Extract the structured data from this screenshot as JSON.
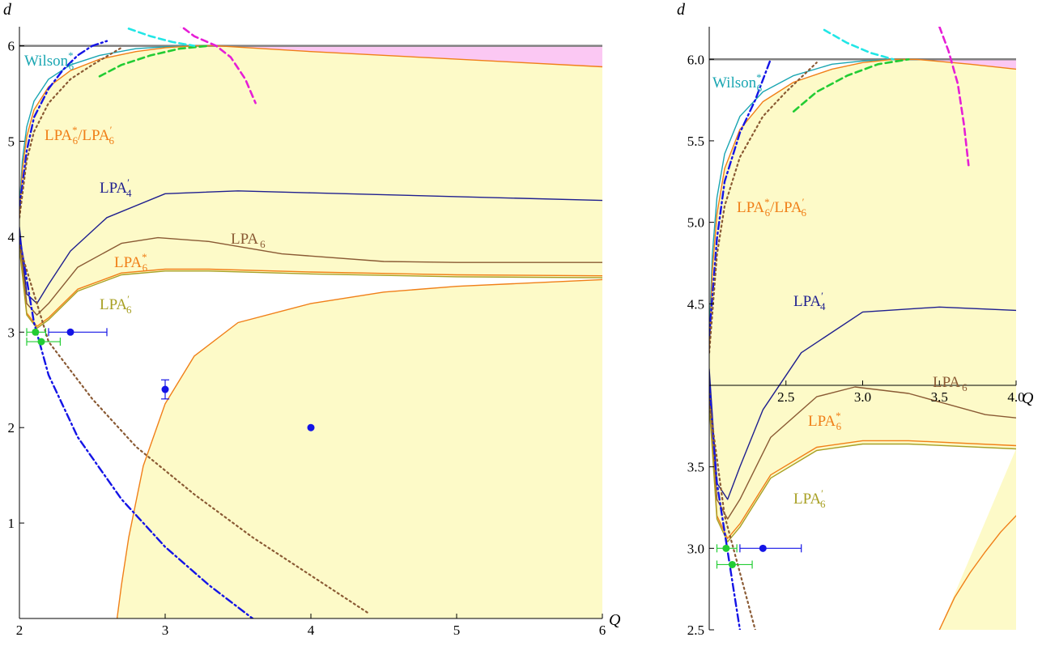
{
  "colors": {
    "region_fill": "#fdfac8",
    "magenta_fill": "#fbc8f3",
    "grey_line": "#808080",
    "orange": "#f07f18",
    "navy": "#1f1f8f",
    "brown": "#8a5a34",
    "olive": "#a8a024",
    "cyan": "#1aa6b2",
    "blue": "#1414e6",
    "green": "#22cc33",
    "magenta": "#e61ed6",
    "cyan_dash": "#22e6e6"
  },
  "chart_data": [
    {
      "type": "line",
      "panel": "left",
      "xlabel": "Q",
      "ylabel": "d",
      "xlim": [
        2,
        6
      ],
      "ylim": [
        0,
        6.2
      ],
      "x_ticks": [
        "2",
        "3",
        "4",
        "5",
        "6"
      ],
      "y_ticks": [
        "1",
        "2",
        "3",
        "4",
        "5",
        "6"
      ],
      "x_tick_values": [
        2,
        3,
        4,
        5,
        6
      ],
      "y_tick_values": [
        1,
        2,
        3,
        4,
        5,
        6
      ],
      "labels": {
        "wilson": {
          "base": "Wilson",
          "sup": "*",
          "sub": "6"
        },
        "lpa_star_prime": {
          "base": "LPA",
          "sup": "*",
          "mid": "/LPA",
          "sup2": "′",
          "sub": "6"
        },
        "lpa4_prime": {
          "base": "LPA",
          "sup": "′",
          "sub": "4"
        },
        "lpa6": {
          "base": "LPA",
          "sub": "6"
        },
        "lpa6_star": {
          "base": "LPA",
          "sup": "*",
          "sub": "6"
        },
        "lpa6_prime": {
          "base": "LPA",
          "sup": "′",
          "sub": "6"
        }
      },
      "series": [
        {
          "name": "Wilson*6",
          "style": "solid",
          "x": [
            2.0,
            2.02,
            2.05,
            2.1,
            2.2,
            2.35,
            2.55,
            2.8,
            3.0,
            3.2,
            3.35
          ],
          "y": [
            4.3,
            4.8,
            5.15,
            5.42,
            5.65,
            5.8,
            5.9,
            5.97,
            5.99,
            6.0,
            6.0
          ]
        },
        {
          "name": "LPA*6/LPA'6",
          "style": "solid",
          "x": [
            2.0,
            2.02,
            2.05,
            2.1,
            2.2,
            2.35,
            2.55,
            2.8,
            3.0,
            3.2,
            3.35,
            4.0,
            5.0,
            6.0
          ],
          "y": [
            4.2,
            4.7,
            5.05,
            5.33,
            5.57,
            5.74,
            5.86,
            5.94,
            5.98,
            6.0,
            6.0,
            5.94,
            5.86,
            5.78
          ]
        },
        {
          "name": "LPA'4",
          "style": "solid",
          "x": [
            2.0,
            2.05,
            2.12,
            2.2,
            2.35,
            2.6,
            3.0,
            3.5,
            4.0,
            5.0,
            6.0
          ],
          "y": [
            4.1,
            3.4,
            3.3,
            3.5,
            3.85,
            4.2,
            4.45,
            4.48,
            4.46,
            4.42,
            4.38
          ]
        },
        {
          "name": "LPA6",
          "style": "solid",
          "x": [
            2.0,
            2.05,
            2.12,
            2.2,
            2.4,
            2.7,
            2.95,
            3.3,
            3.8,
            4.5,
            5.0,
            6.0
          ],
          "y": [
            4.0,
            3.3,
            3.18,
            3.3,
            3.68,
            3.93,
            3.99,
            3.95,
            3.82,
            3.74,
            3.73,
            3.73
          ]
        },
        {
          "name": "LPA*6",
          "style": "solid",
          "x": [
            2.0,
            2.05,
            2.12,
            2.2,
            2.4,
            2.7,
            3.0,
            3.3,
            4.0,
            5.0,
            6.0
          ],
          "y": [
            3.9,
            3.2,
            3.06,
            3.15,
            3.45,
            3.62,
            3.66,
            3.66,
            3.63,
            3.6,
            3.59
          ]
        },
        {
          "name": "LPA'6",
          "style": "solid",
          "x": [
            2.0,
            2.05,
            2.12,
            2.2,
            2.4,
            2.7,
            3.0,
            3.3,
            4.0,
            5.0,
            6.0
          ],
          "y": [
            3.88,
            3.18,
            3.04,
            3.13,
            3.43,
            3.6,
            3.64,
            3.64,
            3.61,
            3.58,
            3.57
          ]
        },
        {
          "name": "lower-orange",
          "style": "solid",
          "x": [
            2.67,
            2.7,
            2.75,
            2.85,
            3.0,
            3.2,
            3.5,
            4.0,
            4.5,
            5.0,
            6.0
          ],
          "y": [
            0.0,
            0.35,
            0.85,
            1.6,
            2.25,
            2.75,
            3.1,
            3.3,
            3.42,
            3.48,
            3.55
          ]
        },
        {
          "name": "blue-dashdot",
          "style": "dashdot",
          "x": [
            2.0,
            2.05,
            2.1,
            2.2,
            2.3,
            2.4,
            2.5,
            2.6
          ],
          "y": [
            4.3,
            4.9,
            5.25,
            5.55,
            5.75,
            5.9,
            6.0,
            6.05
          ]
        },
        {
          "name": "blue-dashdot-lower",
          "style": "dashdot",
          "x": [
            2.0,
            2.1,
            2.2,
            2.4,
            2.7,
            3.0,
            3.3,
            3.6
          ],
          "y": [
            4.0,
            3.1,
            2.55,
            1.9,
            1.25,
            0.75,
            0.35,
            0.0
          ]
        },
        {
          "name": "brown-dotted",
          "style": "dotted",
          "x": [
            2.0,
            2.05,
            2.1,
            2.2,
            2.35,
            2.5,
            2.7
          ],
          "y": [
            4.2,
            4.8,
            5.1,
            5.4,
            5.65,
            5.8,
            5.98
          ]
        },
        {
          "name": "brown-dotted-lower",
          "style": "dotted",
          "x": [
            2.0,
            2.2,
            2.5,
            2.8,
            3.2,
            3.6,
            4.0,
            4.4
          ],
          "y": [
            3.9,
            2.9,
            2.3,
            1.8,
            1.3,
            0.85,
            0.45,
            0.05
          ]
        },
        {
          "name": "green-dashed",
          "style": "dashed",
          "x": [
            2.55,
            2.7,
            2.9,
            3.1,
            3.3
          ],
          "y": [
            5.68,
            5.8,
            5.9,
            5.97,
            6.0
          ]
        },
        {
          "name": "cyan-dashed",
          "style": "dashed",
          "x": [
            2.75,
            2.9,
            3.05,
            3.2
          ],
          "y": [
            6.18,
            6.1,
            6.04,
            6.0
          ]
        },
        {
          "name": "magenta-dashed",
          "style": "dashed",
          "x": [
            3.07,
            3.2,
            3.35,
            3.45,
            3.55,
            3.62
          ],
          "y": [
            6.25,
            6.1,
            6.0,
            5.88,
            5.65,
            5.4
          ]
        }
      ],
      "points": [
        {
          "x": 2.35,
          "y": 3.0,
          "xerr": [
            2.2,
            2.6
          ],
          "color": "blue"
        },
        {
          "x": 3.0,
          "y": 2.4,
          "yerr": [
            2.3,
            2.5
          ],
          "color": "blue"
        },
        {
          "x": 4.0,
          "y": 2.0,
          "color": "blue"
        },
        {
          "x": 2.11,
          "y": 3.0,
          "xerr": [
            2.05,
            2.18
          ],
          "color": "green"
        },
        {
          "x": 2.15,
          "y": 2.9,
          "xerr": [
            2.05,
            2.28
          ],
          "color": "green"
        }
      ]
    },
    {
      "type": "line",
      "panel": "right",
      "xlabel": "Q",
      "ylabel": "d",
      "xlim": [
        2,
        4
      ],
      "ylim": [
        2.5,
        6.2
      ],
      "x_axis_at": 4.0,
      "x_ticks": [
        "2.5",
        "3.0",
        "3.5",
        "4.0"
      ],
      "y_ticks": [
        "2.5",
        "3.0",
        "3.5",
        "4.5",
        "5.0",
        "5.5",
        "6.0"
      ],
      "x_tick_values": [
        2.5,
        3.0,
        3.5,
        4.0
      ],
      "y_tick_values": [
        2.5,
        3.0,
        3.5,
        4.5,
        5.0,
        5.5,
        6.0
      ],
      "series": [
        {
          "name": "Wilson*6",
          "style": "solid",
          "x": [
            2.0,
            2.02,
            2.05,
            2.1,
            2.2,
            2.35,
            2.55,
            2.8,
            3.0,
            3.2,
            3.35
          ],
          "y": [
            4.3,
            4.8,
            5.15,
            5.42,
            5.65,
            5.8,
            5.9,
            5.97,
            5.99,
            6.0,
            6.0
          ]
        },
        {
          "name": "LPA*6/LPA'6",
          "style": "solid",
          "x": [
            2.0,
            2.02,
            2.05,
            2.1,
            2.2,
            2.35,
            2.55,
            2.8,
            3.0,
            3.2,
            3.35,
            3.7,
            4.0
          ],
          "y": [
            4.2,
            4.7,
            5.05,
            5.33,
            5.57,
            5.74,
            5.86,
            5.94,
            5.98,
            6.0,
            6.0,
            5.97,
            5.94
          ]
        },
        {
          "name": "LPA'4",
          "style": "solid",
          "x": [
            2.0,
            2.05,
            2.12,
            2.2,
            2.35,
            2.6,
            3.0,
            3.5,
            4.0
          ],
          "y": [
            4.1,
            3.4,
            3.3,
            3.5,
            3.85,
            4.2,
            4.45,
            4.48,
            4.46
          ]
        },
        {
          "name": "LPA6",
          "style": "solid",
          "x": [
            2.0,
            2.05,
            2.12,
            2.2,
            2.4,
            2.7,
            2.95,
            3.3,
            3.8,
            4.0
          ],
          "y": [
            4.0,
            3.3,
            3.18,
            3.3,
            3.68,
            3.93,
            3.99,
            3.95,
            3.82,
            3.8
          ]
        },
        {
          "name": "LPA*6",
          "style": "solid",
          "x": [
            2.0,
            2.05,
            2.12,
            2.2,
            2.4,
            2.7,
            3.0,
            3.3,
            4.0
          ],
          "y": [
            3.9,
            3.2,
            3.06,
            3.15,
            3.45,
            3.62,
            3.66,
            3.66,
            3.63
          ]
        },
        {
          "name": "LPA'6",
          "style": "solid",
          "x": [
            2.0,
            2.05,
            2.12,
            2.2,
            2.4,
            2.7,
            3.0,
            3.3,
            4.0
          ],
          "y": [
            3.88,
            3.18,
            3.04,
            3.13,
            3.43,
            3.6,
            3.64,
            3.64,
            3.61
          ]
        },
        {
          "name": "lower-orange",
          "style": "solid",
          "x": [
            3.5,
            3.6,
            3.7,
            3.8,
            3.9,
            4.0
          ],
          "y": [
            2.5,
            2.7,
            2.85,
            2.98,
            3.1,
            3.2
          ]
        },
        {
          "name": "blue-dashdot",
          "style": "dashdot",
          "x": [
            2.0,
            2.05,
            2.1,
            2.2,
            2.3,
            2.4
          ],
          "y": [
            4.3,
            4.9,
            5.25,
            5.55,
            5.75,
            6.0
          ]
        },
        {
          "name": "blue-dashdot-lower",
          "style": "dashdot",
          "x": [
            2.0,
            2.05,
            2.1,
            2.15,
            2.2
          ],
          "y": [
            4.0,
            3.4,
            3.1,
            2.8,
            2.5
          ]
        },
        {
          "name": "brown-dotted",
          "style": "dotted",
          "x": [
            2.0,
            2.05,
            2.1,
            2.2,
            2.35,
            2.5,
            2.7
          ],
          "y": [
            4.2,
            4.8,
            5.1,
            5.4,
            5.65,
            5.8,
            5.98
          ]
        },
        {
          "name": "brown-dotted-lower",
          "style": "dotted",
          "x": [
            2.0,
            2.1,
            2.2,
            2.3
          ],
          "y": [
            3.9,
            3.2,
            2.85,
            2.5
          ]
        },
        {
          "name": "green-dashed",
          "style": "dashed",
          "x": [
            2.55,
            2.7,
            2.9,
            3.1,
            3.3
          ],
          "y": [
            5.68,
            5.8,
            5.9,
            5.97,
            6.0
          ]
        },
        {
          "name": "cyan-dashed",
          "style": "dashed",
          "x": [
            2.75,
            2.9,
            3.05,
            3.2
          ],
          "y": [
            6.18,
            6.1,
            6.04,
            6.0
          ]
        },
        {
          "name": "magenta-dashed",
          "style": "dashed",
          "x": [
            3.5,
            3.56,
            3.62,
            3.66,
            3.69
          ],
          "y": [
            6.2,
            6.05,
            5.85,
            5.6,
            5.35
          ]
        }
      ],
      "points": [
        {
          "x": 2.35,
          "y": 3.0,
          "xerr": [
            2.2,
            2.6
          ],
          "color": "blue"
        },
        {
          "x": 2.11,
          "y": 3.0,
          "xerr": [
            2.05,
            2.18
          ],
          "color": "green"
        },
        {
          "x": 2.15,
          "y": 2.9,
          "xerr": [
            2.05,
            2.28
          ],
          "color": "green"
        }
      ]
    }
  ]
}
